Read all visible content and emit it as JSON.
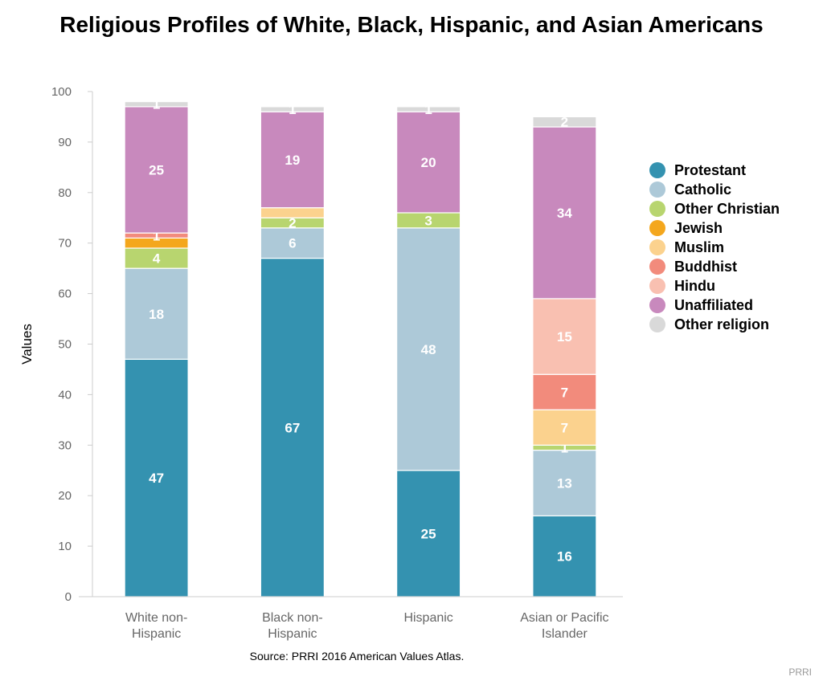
{
  "chart_data": {
    "type": "bar",
    "stacked": true,
    "title": "Religious Profiles of White, Black, Hispanic, and Asian Americans",
    "ylabel": "Values",
    "xlabel": "",
    "ylim": [
      0,
      100
    ],
    "yticks": [
      0,
      10,
      20,
      30,
      40,
      50,
      60,
      70,
      80,
      90,
      100
    ],
    "grid": false,
    "legend_position": "right",
    "categories": [
      "White non-Hispanic",
      "Black non-Hispanic",
      "Hispanic",
      "Asian or Pacific Islander"
    ],
    "series": [
      {
        "name": "Protestant",
        "color": "#3492b0",
        "values": [
          47,
          67,
          25,
          16
        ]
      },
      {
        "name": "Catholic",
        "color": "#adc9d8",
        "values": [
          18,
          6,
          48,
          13
        ]
      },
      {
        "name": "Other Christian",
        "color": "#b8d56f",
        "values": [
          4,
          2,
          3,
          1
        ]
      },
      {
        "name": "Jewish",
        "color": "#f4a71d",
        "values": [
          2,
          0,
          0,
          0
        ]
      },
      {
        "name": "Muslim",
        "color": "#fbd28e",
        "values": [
          0,
          2,
          0,
          7
        ]
      },
      {
        "name": "Buddhist",
        "color": "#f28b7c",
        "values": [
          1,
          0,
          0,
          7
        ]
      },
      {
        "name": "Hindu",
        "color": "#f9c0b1",
        "values": [
          0,
          0,
          0,
          15
        ]
      },
      {
        "name": "Unaffiliated",
        "color": "#c889bd",
        "values": [
          25,
          19,
          20,
          34
        ]
      },
      {
        "name": "Other religion",
        "color": "#d9d9d9",
        "values": [
          1,
          1,
          1,
          2
        ]
      }
    ],
    "data_labels": [
      [
        "47",
        "67",
        "25",
        "16"
      ],
      [
        "18",
        "6",
        "48",
        "13"
      ],
      [
        "4",
        "2",
        "3",
        "1"
      ],
      [
        "",
        "",
        "",
        ""
      ],
      [
        "",
        "",
        "",
        "7"
      ],
      [
        "1",
        "",
        "",
        "7"
      ],
      [
        "",
        "",
        "",
        "15"
      ],
      [
        "25",
        "19",
        "20",
        "34"
      ],
      [
        "1",
        "1",
        "1",
        "2"
      ]
    ]
  },
  "source": "Source: PRRI 2016 American Values Atlas.",
  "credit": "PRRI"
}
